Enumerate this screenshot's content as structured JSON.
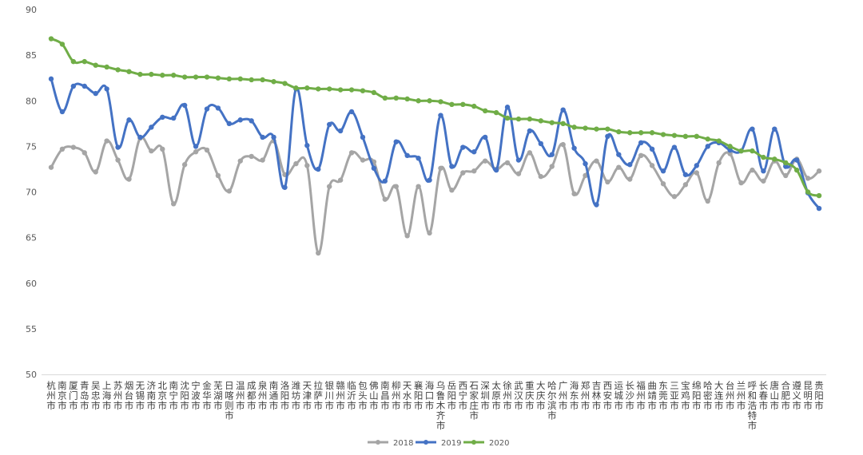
{
  "chart_data": {
    "type": "line",
    "ylim": [
      50,
      90
    ],
    "yticks": [
      50,
      55,
      60,
      65,
      70,
      75,
      80,
      85,
      90
    ],
    "grid": false,
    "legend_position": "bottom",
    "categories": [
      "杭州市",
      "南京市",
      "厦门市",
      "青岛市",
      "吴忠市",
      "上海市",
      "苏州市",
      "烟台市",
      "无锡市",
      "济南市",
      "北京市",
      "南宁市",
      "沈阳市",
      "宁波市",
      "金华市",
      "芜湖市",
      "日喀则市",
      "温州市",
      "成都市",
      "泉州市",
      "南通市",
      "洛阳市",
      "潍坊市",
      "天津市",
      "拉萨市",
      "银川市",
      "赣州市",
      "临沂市",
      "包头市",
      "佛山市",
      "南昌市",
      "柳州市",
      "天水市",
      "襄阳市",
      "海口市",
      "乌鲁木齐市",
      "岳阳市",
      "西宁市",
      "石家庄市",
      "深圳市",
      "太原市",
      "徐州市",
      "武汉市",
      "重庆市",
      "大庆市",
      "哈尔滨市",
      "广州市",
      "海东市",
      "郑州市",
      "吉林市",
      "西安市",
      "运城市",
      "长沙市",
      "福州市",
      "曲靖市",
      "东莞市",
      "三亚市",
      "宝鸡市",
      "绵阳市",
      "哈密市",
      "大连市",
      "台州市",
      "兰州市",
      "呼和浩特市",
      "长春市",
      "唐山市",
      "合肥市",
      "遵义市",
      "昆明市",
      "贵阳市"
    ],
    "series": [
      {
        "name": "2018",
        "color": "#a5a5a5",
        "values": [
          72.7,
          74.7,
          74.9,
          74.3,
          72.2,
          75.6,
          73.5,
          71.4,
          75.9,
          74.5,
          74.7,
          68.7,
          73.0,
          74.4,
          74.6,
          71.8,
          70.1,
          73.4,
          73.9,
          73.5,
          75.6,
          71.9,
          73.1,
          72.9,
          63.3,
          70.6,
          71.3,
          74.3,
          73.5,
          73.3,
          69.2,
          70.6,
          65.2,
          70.6,
          65.5,
          72.6,
          70.2,
          72.1,
          72.3,
          73.4,
          72.5,
          73.2,
          72.0,
          74.3,
          71.7,
          72.8,
          75.2,
          69.8,
          71.8,
          73.4,
          71.1,
          72.7,
          71.4,
          74.0,
          72.9,
          70.9,
          69.5,
          70.8,
          72.1,
          69.0,
          73.2,
          74.2,
          71.0,
          72.4,
          71.2,
          73.4,
          71.8,
          73.6,
          71.5,
          72.3
        ]
      },
      {
        "name": "2019",
        "color": "#4472c4",
        "values": [
          82.4,
          78.8,
          81.6,
          81.6,
          80.8,
          81.3,
          74.9,
          77.9,
          76.0,
          77.1,
          78.2,
          78.1,
          79.5,
          75.0,
          79.1,
          79.2,
          77.5,
          77.9,
          77.8,
          76.0,
          76.0,
          70.5,
          81.3,
          75.1,
          72.5,
          77.4,
          76.7,
          78.8,
          76.0,
          72.6,
          71.2,
          75.5,
          74.0,
          73.7,
          71.3,
          78.4,
          72.8,
          74.9,
          74.4,
          76.0,
          72.4,
          79.3,
          73.5,
          76.7,
          75.3,
          74.1,
          79.0,
          74.8,
          73.1,
          68.6,
          76.1,
          74.1,
          73.0,
          75.4,
          74.7,
          72.3,
          74.9,
          71.9,
          72.9,
          75.0,
          75.4,
          74.6,
          74.5,
          76.9,
          72.3,
          76.9,
          72.8,
          73.5,
          69.9,
          68.2
        ]
      },
      {
        "name": "2020",
        "color": "#70ad47",
        "values": [
          86.8,
          86.2,
          84.3,
          84.3,
          83.9,
          83.7,
          83.4,
          83.2,
          82.9,
          82.9,
          82.8,
          82.8,
          82.6,
          82.6,
          82.6,
          82.5,
          82.4,
          82.4,
          82.3,
          82.3,
          82.1,
          81.9,
          81.4,
          81.4,
          81.3,
          81.3,
          81.2,
          81.2,
          81.1,
          80.9,
          80.3,
          80.3,
          80.2,
          80.0,
          80.0,
          79.9,
          79.6,
          79.6,
          79.4,
          78.9,
          78.7,
          78.1,
          78.0,
          78.0,
          77.8,
          77.6,
          77.5,
          77.1,
          77.0,
          76.9,
          76.9,
          76.6,
          76.5,
          76.5,
          76.5,
          76.3,
          76.2,
          76.1,
          76.1,
          75.8,
          75.6,
          75.0,
          74.5,
          74.5,
          73.8,
          73.6,
          73.2,
          72.4,
          70.0,
          69.6
        ]
      }
    ]
  }
}
